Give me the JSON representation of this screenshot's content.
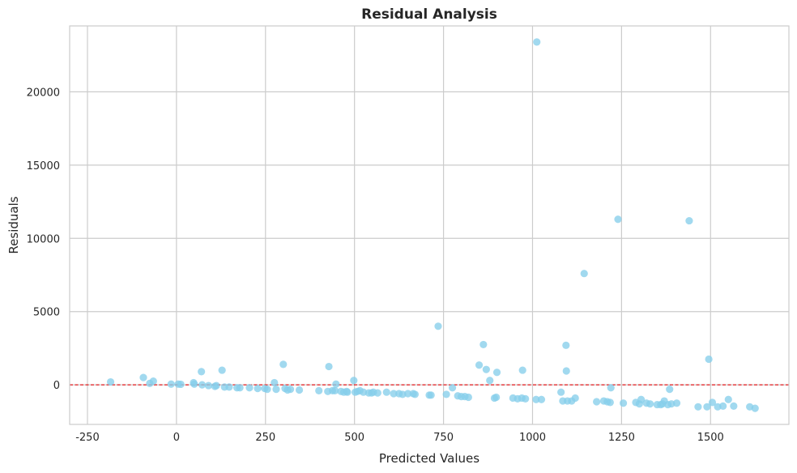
{
  "chart_data": {
    "type": "scatter",
    "title": "Residual Analysis",
    "xlabel": "Predicted Values",
    "ylabel": "Residuals",
    "xlim": [
      -300,
      1720
    ],
    "ylim": [
      -2700,
      24500
    ],
    "xticks": [
      -250,
      0,
      250,
      500,
      750,
      1000,
      1250,
      1500
    ],
    "yticks": [
      0,
      5000,
      10000,
      15000,
      20000
    ],
    "grid": true,
    "point_color": "#87ceeb",
    "reference_line": {
      "y": 0,
      "color": "#e31a1c",
      "style": "dashed"
    },
    "series": [
      {
        "x": [
          -185,
          -93,
          -75,
          -65,
          -15,
          5,
          12,
          48,
          50,
          70,
          72,
          90,
          108,
          112,
          128,
          135,
          148,
          170,
          178,
          205,
          228,
          248,
          255,
          275,
          280,
          300,
          305,
          312,
          320,
          345,
          400,
          425,
          428,
          438,
          445,
          448,
          462,
          470,
          478,
          480,
          498,
          502,
          508,
          515,
          525,
          540,
          548,
          553,
          565,
          590,
          610,
          625,
          635,
          650,
          665,
          670,
          710,
          715,
          735,
          758,
          775,
          790,
          800,
          810,
          820,
          850,
          862,
          870,
          880,
          893,
          898,
          900,
          945,
          958,
          970,
          972,
          980,
          1010,
          1012,
          1025,
          1080,
          1085,
          1094,
          1095,
          1098,
          1110,
          1120,
          1145,
          1180,
          1200,
          1210,
          1218,
          1220,
          1240,
          1255,
          1290,
          1300,
          1305,
          1320,
          1330,
          1350,
          1360,
          1365,
          1370,
          1380,
          1385,
          1390,
          1405,
          1440,
          1465,
          1490,
          1495,
          1505,
          1520,
          1535,
          1550,
          1565,
          1610,
          1625
        ],
        "y": [
          200,
          500,
          100,
          250,
          50,
          50,
          40,
          150,
          50,
          900,
          0,
          -50,
          -100,
          -50,
          1000,
          -150,
          -150,
          -200,
          -200,
          -200,
          -250,
          -250,
          -300,
          150,
          -300,
          1400,
          -250,
          -350,
          -300,
          -350,
          -400,
          -450,
          1250,
          -400,
          -400,
          50,
          -450,
          -500,
          -450,
          -500,
          300,
          -500,
          -450,
          -400,
          -500,
          -550,
          -550,
          -500,
          -550,
          -500,
          -600,
          -600,
          -650,
          -600,
          -600,
          -650,
          -700,
          -700,
          4000,
          -650,
          -200,
          -750,
          -800,
          -800,
          -850,
          1350,
          2750,
          1050,
          300,
          -900,
          -850,
          850,
          -900,
          -950,
          -900,
          1000,
          -950,
          -1000,
          23400,
          -1000,
          -500,
          -1100,
          2700,
          950,
          -1100,
          -1100,
          -900,
          7600,
          -1150,
          -1100,
          -1150,
          -1200,
          -200,
          11300,
          -1250,
          -1200,
          -1300,
          -1000,
          -1250,
          -1300,
          -1350,
          -1350,
          -1300,
          -1100,
          -1350,
          -300,
          -1300,
          -1250,
          11200,
          -1500,
          -1500,
          1750,
          -1200,
          -1500,
          -1450,
          -1000,
          -1450,
          -1500,
          -1600
        ]
      }
    ]
  }
}
